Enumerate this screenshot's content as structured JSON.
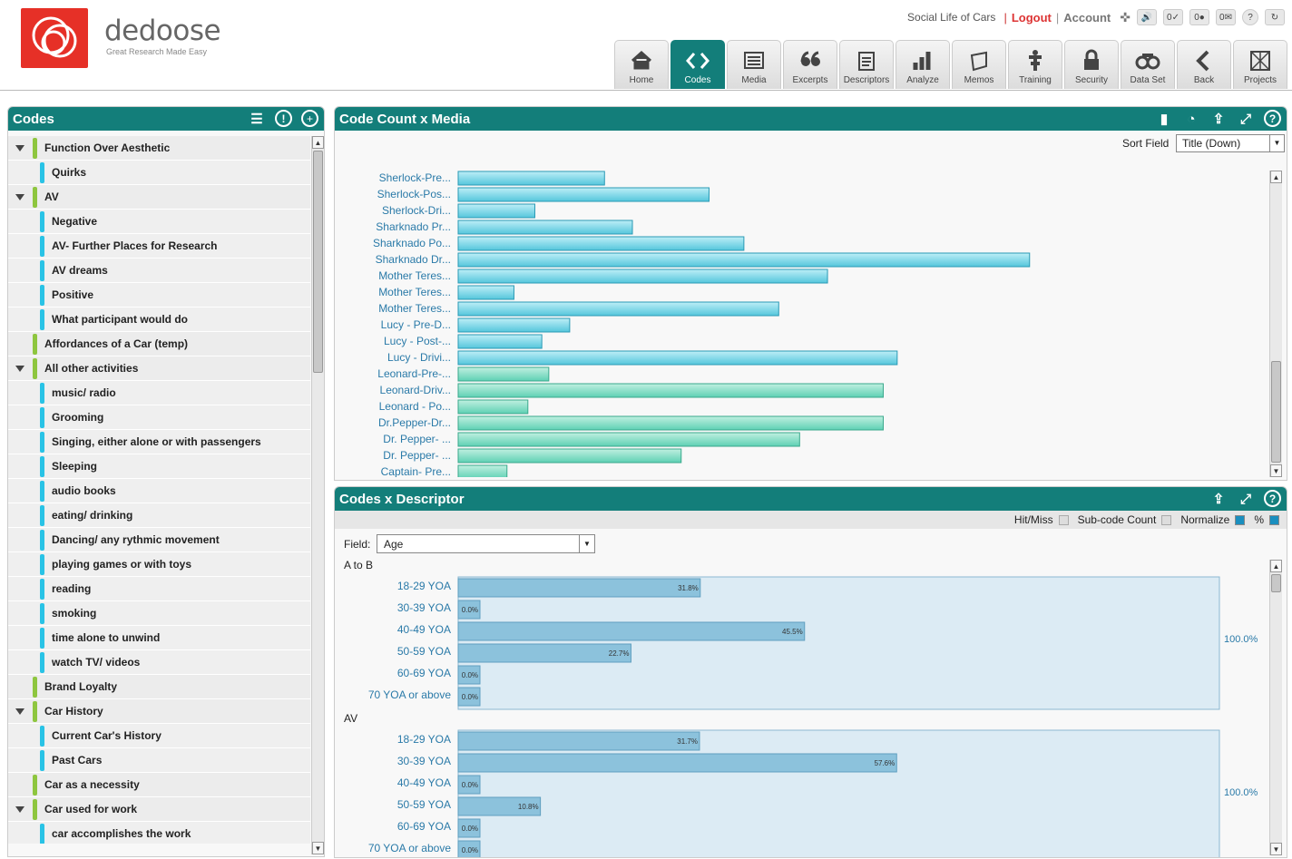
{
  "header": {
    "brand": "dedoose",
    "tagline": "Great Research Made Easy",
    "project": "Social Life of Cars",
    "logout": "Logout",
    "account": "Account",
    "badges": [
      "0",
      "0",
      "0"
    ]
  },
  "nav": [
    {
      "label": "Home",
      "icon": "home-icon"
    },
    {
      "label": "Codes",
      "icon": "code-brackets-icon",
      "active": true
    },
    {
      "label": "Media",
      "icon": "media-icon"
    },
    {
      "label": "Excerpts",
      "icon": "quote-icon"
    },
    {
      "label": "Descriptors",
      "icon": "clipboard-icon"
    },
    {
      "label": "Analyze",
      "icon": "bar-chart-icon"
    },
    {
      "label": "Memos",
      "icon": "memo-icon"
    },
    {
      "label": "Training",
      "icon": "training-icon"
    },
    {
      "label": "Security",
      "icon": "lock-icon"
    },
    {
      "label": "Data Set",
      "icon": "binoculars-icon"
    },
    {
      "label": "Back",
      "icon": "back-arrow-icon"
    },
    {
      "label": "Projects",
      "icon": "projects-icon"
    }
  ],
  "codes_panel": {
    "title": "Codes",
    "items": [
      {
        "label": "Function Over Aesthetic",
        "level": 0,
        "expand": true
      },
      {
        "label": "Quirks",
        "level": 1
      },
      {
        "label": "AV",
        "level": 0,
        "expand": true
      },
      {
        "label": "Negative",
        "level": 1
      },
      {
        "label": "AV- Further Places for Research",
        "level": 1
      },
      {
        "label": "AV dreams",
        "level": 1
      },
      {
        "label": "Positive",
        "level": 1
      },
      {
        "label": "What participant would do",
        "level": 1
      },
      {
        "label": "Affordances of a Car (temp)",
        "level": 0
      },
      {
        "label": "All other activities",
        "level": 0,
        "expand": true
      },
      {
        "label": "music/ radio",
        "level": 1
      },
      {
        "label": "Grooming",
        "level": 1
      },
      {
        "label": "Singing, either alone or with passengers",
        "level": 1
      },
      {
        "label": "Sleeping",
        "level": 1
      },
      {
        "label": "audio books",
        "level": 1
      },
      {
        "label": "eating/ drinking",
        "level": 1
      },
      {
        "label": "Dancing/ any rythmic movement",
        "level": 1
      },
      {
        "label": "playing games or with toys",
        "level": 1
      },
      {
        "label": "reading",
        "level": 1
      },
      {
        "label": "smoking",
        "level": 1
      },
      {
        "label": "time alone to unwind",
        "level": 1
      },
      {
        "label": "watch TV/ videos",
        "level": 1
      },
      {
        "label": "Brand Loyalty",
        "level": 0
      },
      {
        "label": "Car History",
        "level": 0,
        "expand": true
      },
      {
        "label": "Current Car's History",
        "level": 1
      },
      {
        "label": "Past Cars",
        "level": 1
      },
      {
        "label": "Car as a necessity",
        "level": 0
      },
      {
        "label": "Car used for work",
        "level": 0,
        "expand": true
      },
      {
        "label": "car accomplishes the work",
        "level": 1
      }
    ]
  },
  "count_panel": {
    "title": "Code Count x Media",
    "sort_label": "Sort Field",
    "sort_value": "Title (Down)"
  },
  "descriptor_panel": {
    "title": "Codes x Descriptor",
    "options": [
      "Hit/Miss",
      "Sub-code Count",
      "Normalize",
      "%"
    ],
    "field_label": "Field:",
    "field_value": "Age"
  },
  "chart_data": [
    {
      "type": "bar",
      "orientation": "horizontal",
      "title": "Code Count x Media",
      "categories": [
        "Sherlock-Pre...",
        "Sherlock-Pos...",
        "Sherlock-Dri...",
        "Sharknado Pr...",
        "Sharknado Po...",
        "Sharknado Dr...",
        "Mother Teres...",
        "Mother Teres...",
        "Mother Teres...",
        "Lucy - Pre-D...",
        "Lucy - Post-...",
        "Lucy - Drivi...",
        "Leonard-Pre-...",
        "Leonard-Driv...",
        "Leonard - Po...",
        "Dr.Pepper-Dr...",
        "Dr. Pepper- ...",
        "Dr. Pepper- ...",
        "Captain- Pre..."
      ],
      "values": [
        21,
        36,
        11,
        25,
        41,
        82,
        53,
        8,
        46,
        16,
        12,
        63,
        13,
        61,
        10,
        61,
        49,
        32,
        7
      ],
      "grid": false
    },
    {
      "type": "bar",
      "orientation": "horizontal",
      "title": "Codes x Descriptor",
      "groups": [
        {
          "name": "A to B",
          "total": "100.0%",
          "categories": [
            "18-29 YOA",
            "30-39 YOA",
            "40-49 YOA",
            "50-59 YOA",
            "60-69 YOA",
            "70 YOA or above"
          ],
          "values": [
            31.8,
            0.0,
            45.5,
            22.7,
            0.0,
            0.0
          ],
          "labels": [
            "31.8%",
            "0.0%",
            "45.5%",
            "22.7%",
            "0.0%",
            "0.0%"
          ]
        },
        {
          "name": "AV",
          "total": "100.0%",
          "categories": [
            "18-29 YOA",
            "30-39 YOA",
            "40-49 YOA",
            "50-59 YOA",
            "60-69 YOA",
            "70 YOA or above"
          ],
          "values": [
            31.7,
            57.6,
            0.0,
            10.8,
            0.0,
            0.0
          ],
          "labels": [
            "31.7%",
            "57.6%",
            "0.0%",
            "10.8%",
            "0.0%",
            "0.0%"
          ]
        }
      ],
      "xlim": [
        0,
        100
      ]
    }
  ]
}
